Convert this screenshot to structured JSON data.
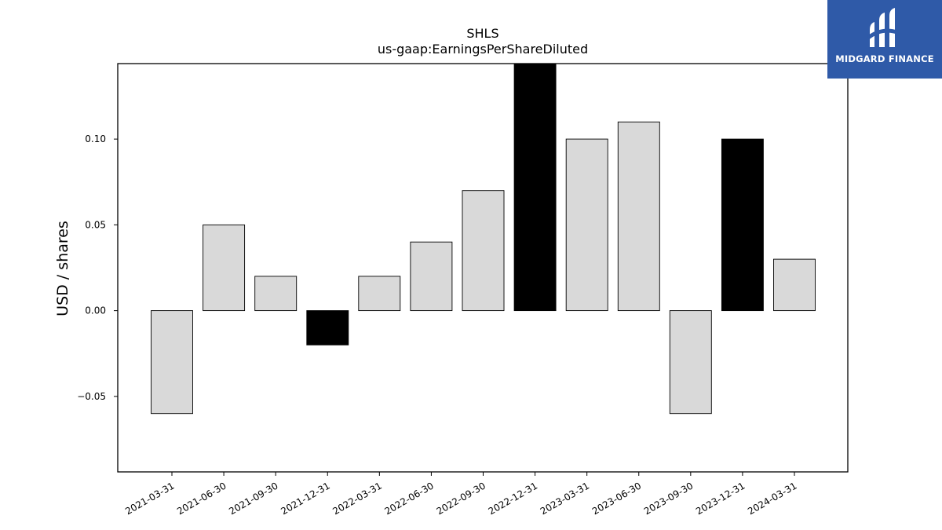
{
  "chart_data": {
    "type": "bar",
    "title": "SHLS",
    "subtitle": "us-gaap:EarningsPerShareDiluted",
    "ylabel": "USD / shares",
    "xlabel": "",
    "categories": [
      "2021-03-31",
      "2021-06-30",
      "2021-09-30",
      "2021-12-31",
      "2022-03-31",
      "2022-06-30",
      "2022-09-30",
      "2022-12-31",
      "2023-03-31",
      "2023-06-30",
      "2023-09-30",
      "2023-12-31",
      "2024-03-31"
    ],
    "values": [
      -0.06,
      0.05,
      0.02,
      -0.02,
      0.02,
      0.04,
      0.07,
      0.16,
      0.1,
      0.11,
      -0.06,
      0.1,
      0.03
    ],
    "highlighted": [
      false,
      false,
      false,
      true,
      false,
      false,
      false,
      true,
      false,
      false,
      false,
      true,
      false
    ],
    "ylim": [
      -0.094,
      0.144
    ],
    "yticks": [
      -0.05,
      0.0,
      0.05,
      0.1
    ],
    "ytick_labels": [
      "−0.05",
      "0.00",
      "0.05",
      "0.10"
    ],
    "grid": false,
    "colors": {
      "bar": "#d9d9d9",
      "highlight": "#000000",
      "edge": "#000000"
    }
  },
  "logo": {
    "text": "MIDGARD FINANCE",
    "background": "#2f5aa8"
  }
}
